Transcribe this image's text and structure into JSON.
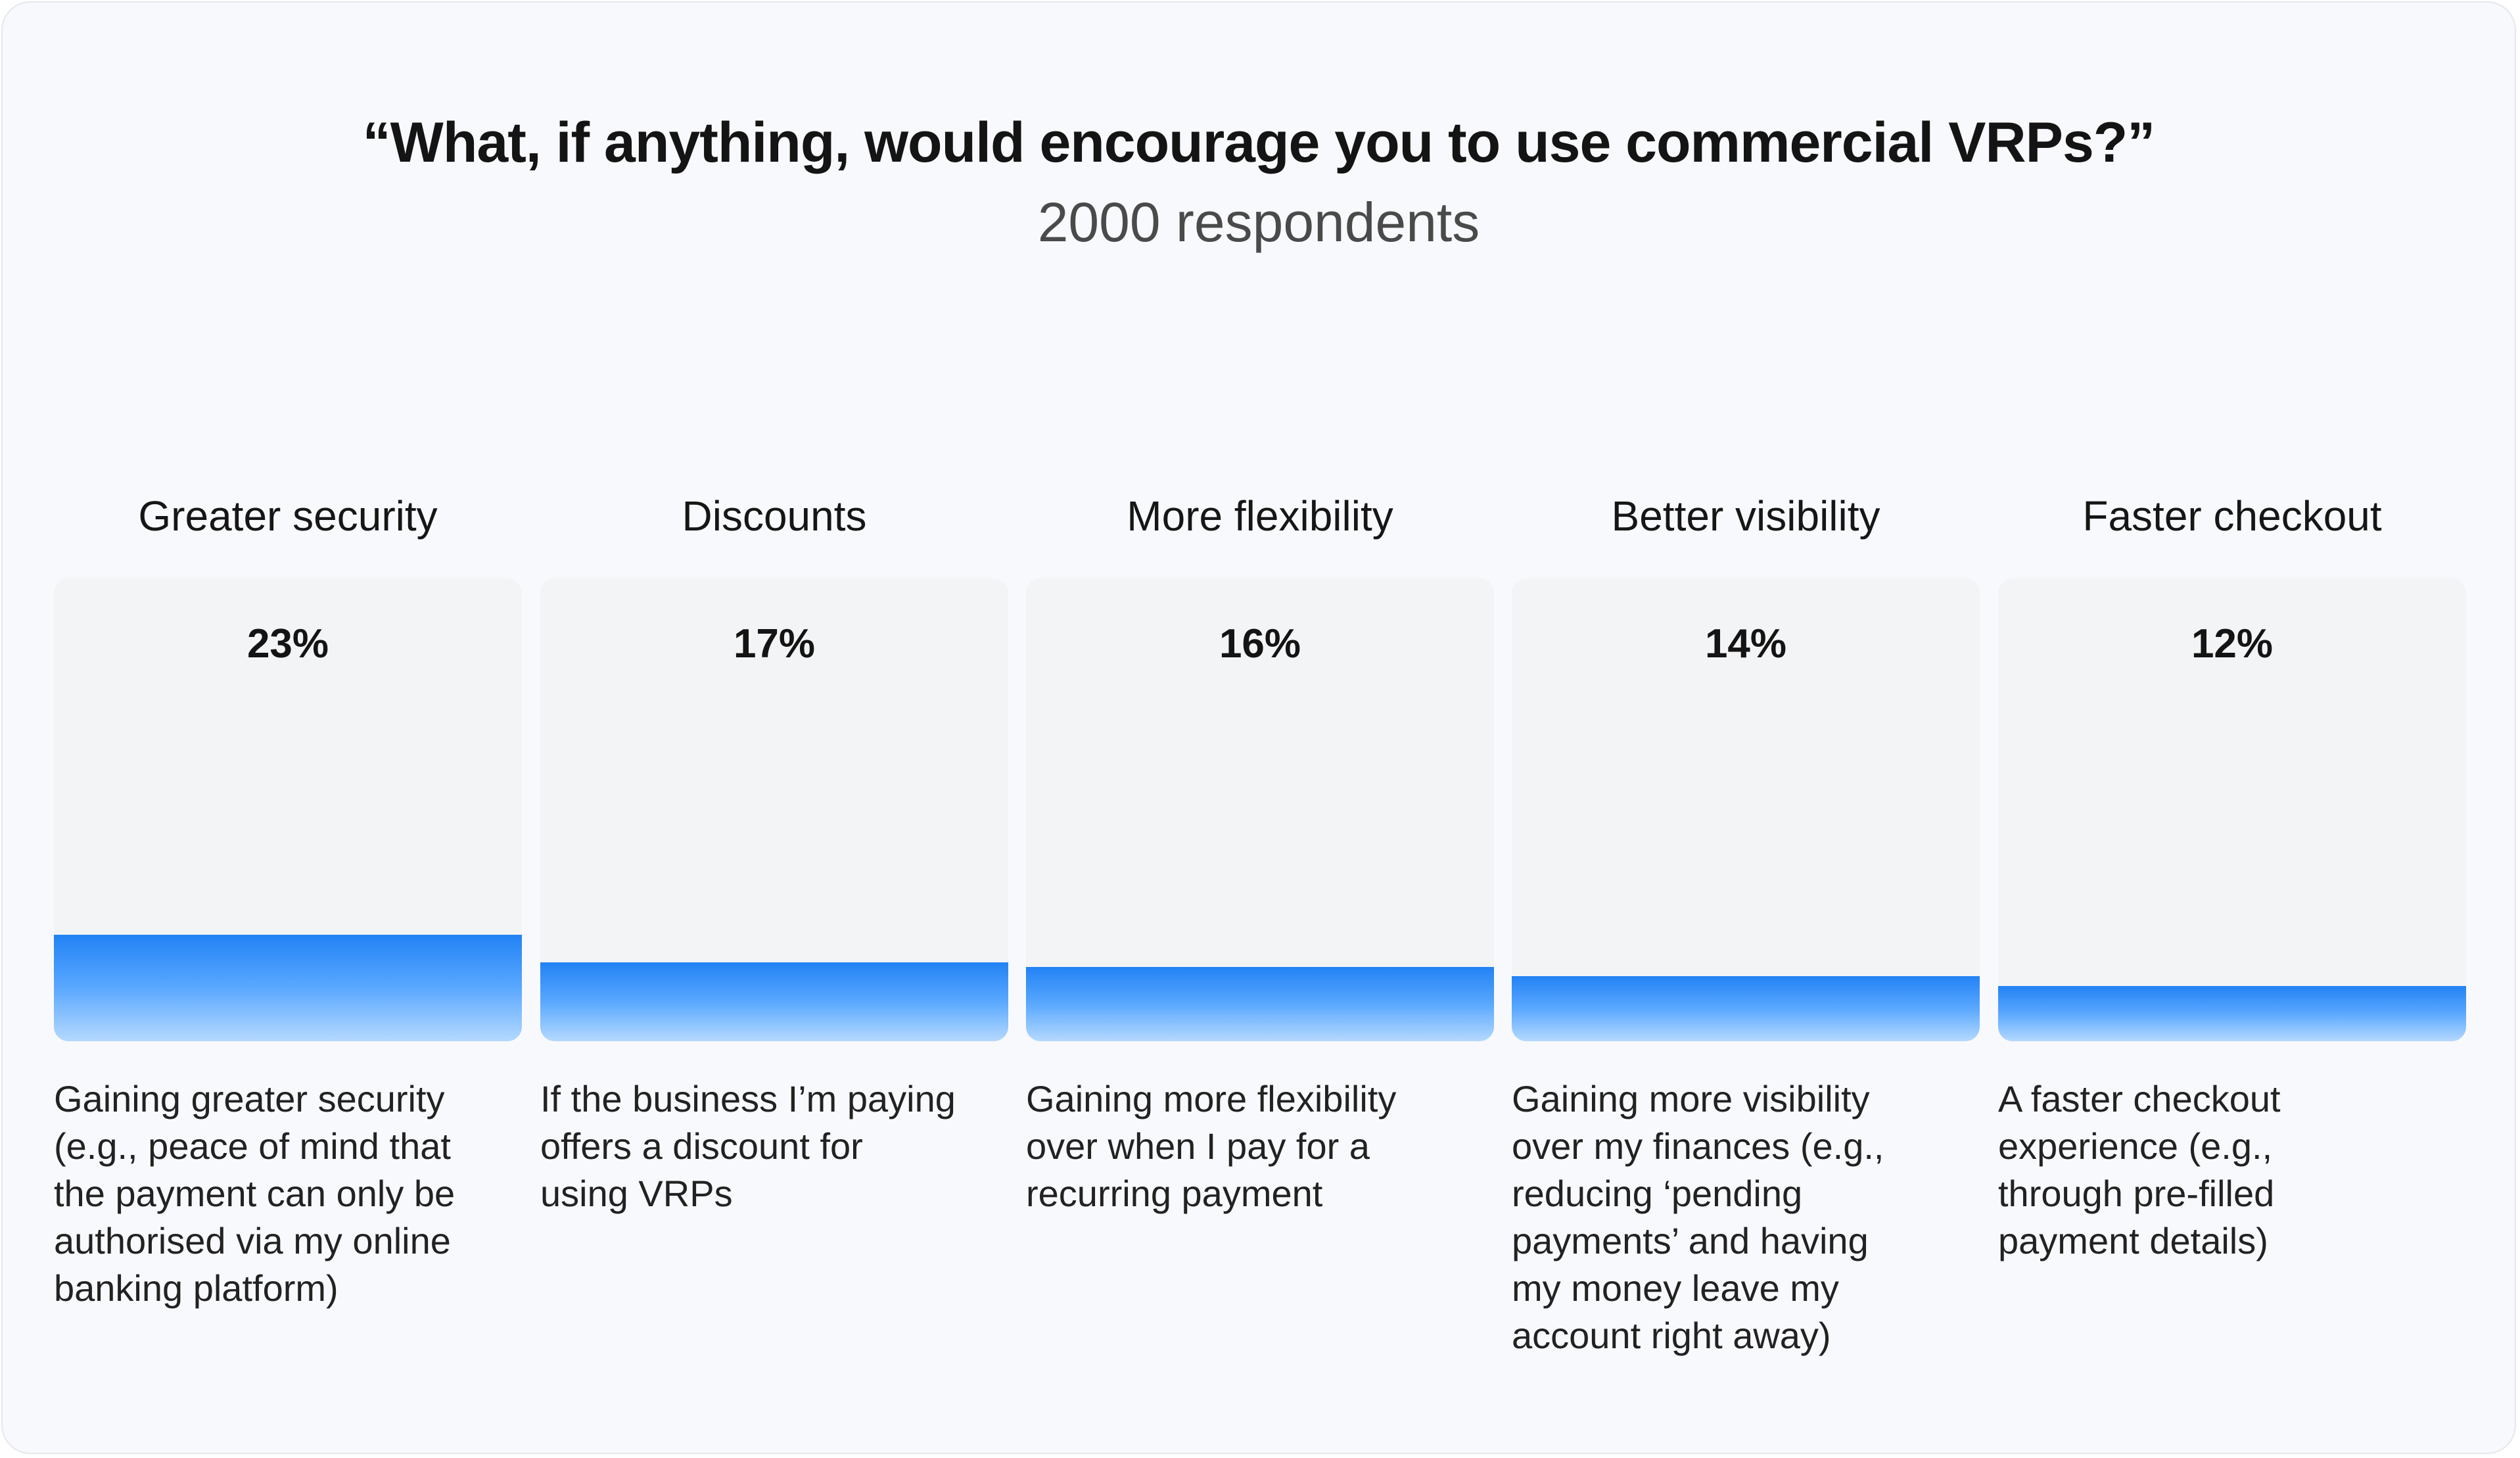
{
  "chart_data": {
    "type": "bar",
    "title": "“What, if anything, would encourage you to use commercial VRPs?”",
    "subtitle": "2000 respondents",
    "ylim": [
      0,
      100
    ],
    "grid": false,
    "categories": [
      "Greater security",
      "Discounts",
      "More flexibility",
      "Better visibility",
      "Faster checkout"
    ],
    "values": [
      23,
      17,
      16,
      14,
      12
    ],
    "value_labels": [
      "23%",
      "17%",
      "16%",
      "14%",
      "12%"
    ],
    "descriptions": [
      [
        "Gaining greater security",
        "(e.g., peace of mind that",
        "the payment can only be",
        "authorised via my online",
        "banking platform)"
      ],
      [
        "If the business I’m paying",
        "offers a discount for",
        "using VRPs"
      ],
      [
        "Gaining more flexibility",
        "over when I pay for a",
        "recurring payment"
      ],
      [
        "Gaining more visibility",
        "over my finances (e.g.,",
        "reducing ‘pending",
        "payments’ and having",
        "my money leave my",
        "account right away)"
      ],
      [
        "A faster checkout",
        "experience (e.g.,",
        "through pre-filled",
        "payment details)"
      ]
    ],
    "colors": {
      "bar_top": "#2282f4",
      "bar_bottom": "#b5d9ff",
      "track": "#f3f4f6",
      "card": "#f8f9fc"
    }
  }
}
